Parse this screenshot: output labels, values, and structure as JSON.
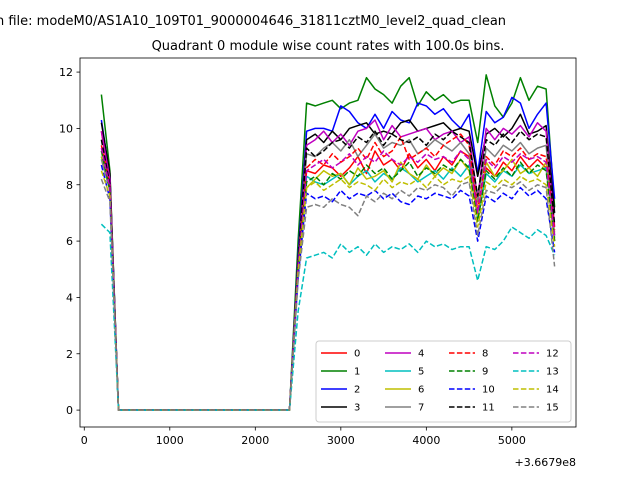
{
  "figure": {
    "suptitle": "n file: modeM0/AS1A10_109T01_9000004646_31811cztM0_level2_quad_clean",
    "title": "Quadrant 0 module wise count rates with 100.0s bins.",
    "x_offset_label": "+3.6679e8"
  },
  "chart_data": {
    "type": "line",
    "title": "Quadrant 0 module wise count rates with 100.0s bins.",
    "xlabel": "",
    "ylabel": "",
    "xlim": [
      -50,
      5750
    ],
    "ylim": [
      -0.6,
      12.5
    ],
    "x_offset": 366790000,
    "xticks": [
      0,
      1000,
      2000,
      3000,
      4000,
      5000
    ],
    "yticks": [
      0,
      2,
      4,
      6,
      8,
      10,
      12
    ],
    "grid": false,
    "legend": {
      "position": "lower-right",
      "columns": 4
    },
    "x": [
      200,
      300,
      400,
      500,
      600,
      700,
      800,
      900,
      1000,
      1100,
      1200,
      1300,
      1400,
      1500,
      1600,
      1700,
      1800,
      1900,
      2000,
      2100,
      2200,
      2300,
      2400,
      2500,
      2600,
      2700,
      2800,
      2900,
      3000,
      3100,
      3200,
      3300,
      3400,
      3500,
      3600,
      3700,
      3800,
      3900,
      4000,
      4100,
      4200,
      4300,
      4400,
      4500,
      4600,
      4700,
      4800,
      4900,
      5000,
      5100,
      5200,
      5300,
      5400,
      5500
    ],
    "series": [
      {
        "name": "0",
        "color": "#ff0000",
        "dash": "solid",
        "values": [
          9.9,
          8.0,
          0,
          0,
          0,
          0,
          0,
          0,
          0,
          0,
          0,
          0,
          0,
          0,
          0,
          0,
          0,
          0,
          0,
          0,
          0,
          0,
          0,
          5.0,
          8.5,
          8.4,
          8.7,
          8.6,
          8.3,
          8.6,
          9.0,
          8.4,
          9.2,
          8.7,
          8.9,
          8.5,
          9.1,
          8.6,
          8.9,
          8.5,
          9.0,
          8.7,
          9.2,
          9.0,
          7.0,
          8.6,
          8.3,
          8.8,
          8.5,
          9.0,
          8.6,
          8.9,
          8.6,
          6.0
        ]
      },
      {
        "name": "1",
        "color": "#008000",
        "dash": "solid",
        "values": [
          11.2,
          8.5,
          0,
          0,
          0,
          0,
          0,
          0,
          0,
          0,
          0,
          0,
          0,
          0,
          0,
          0,
          0,
          0,
          0,
          0,
          0,
          0,
          0,
          6.0,
          10.9,
          10.8,
          10.9,
          11.0,
          10.7,
          10.9,
          11.0,
          11.8,
          11.4,
          11.2,
          10.9,
          11.5,
          11.8,
          10.8,
          11.3,
          11.0,
          11.2,
          10.9,
          11.0,
          11.0,
          9.5,
          11.9,
          10.8,
          10.4,
          10.9,
          11.8,
          11.0,
          11.5,
          11.4,
          7.2
        ]
      },
      {
        "name": "2",
        "color": "#0000ff",
        "dash": "solid",
        "values": [
          10.3,
          8.3,
          0,
          0,
          0,
          0,
          0,
          0,
          0,
          0,
          0,
          0,
          0,
          0,
          0,
          0,
          0,
          0,
          0,
          0,
          0,
          0,
          0,
          5.5,
          9.9,
          10.0,
          10.0,
          9.9,
          10.8,
          10.6,
          10.2,
          10.0,
          10.5,
          10.0,
          10.6,
          10.3,
          10.2,
          10.9,
          10.8,
          10.5,
          10.7,
          10.3,
          10.0,
          10.5,
          8.4,
          10.6,
          10.2,
          10.4,
          11.1,
          10.9,
          10.0,
          10.5,
          10.9,
          7.5
        ]
      },
      {
        "name": "3",
        "color": "#000000",
        "dash": "solid",
        "values": [
          10.2,
          8.4,
          0,
          0,
          0,
          0,
          0,
          0,
          0,
          0,
          0,
          0,
          0,
          0,
          0,
          0,
          0,
          0,
          0,
          0,
          0,
          0,
          0,
          5.3,
          9.6,
          9.8,
          9.5,
          9.9,
          9.6,
          10.0,
          10.1,
          10.2,
          9.8,
          9.9,
          9.8,
          10.2,
          10.3,
          9.9,
          10.0,
          10.1,
          10.2,
          9.9,
          10.0,
          9.9,
          8.3,
          9.8,
          10.0,
          9.7,
          10.0,
          10.5,
          9.8,
          9.9,
          10.1,
          7.0
        ]
      },
      {
        "name": "4",
        "color": "#bf00bf",
        "dash": "solid",
        "values": [
          9.9,
          8.2,
          0,
          0,
          0,
          0,
          0,
          0,
          0,
          0,
          0,
          0,
          0,
          0,
          0,
          0,
          0,
          0,
          0,
          0,
          0,
          0,
          0,
          5.2,
          9.4,
          9.6,
          9.9,
          9.5,
          9.8,
          9.4,
          9.9,
          10.0,
          10.3,
          9.6,
          10.1,
          9.7,
          9.8,
          9.9,
          10.0,
          9.6,
          9.8,
          9.9,
          9.5,
          9.7,
          7.5,
          10.0,
          9.6,
          10.0,
          9.8,
          10.1,
          9.7,
          10.2,
          9.9,
          6.5
        ]
      },
      {
        "name": "5",
        "color": "#00bfbf",
        "dash": "solid",
        "values": [
          9.0,
          7.8,
          0,
          0,
          0,
          0,
          0,
          0,
          0,
          0,
          0,
          0,
          0,
          0,
          0,
          0,
          0,
          0,
          0,
          0,
          0,
          0,
          0,
          5.0,
          8.3,
          8.1,
          8.0,
          8.2,
          8.4,
          8.0,
          8.3,
          8.5,
          8.1,
          8.4,
          8.2,
          8.6,
          8.4,
          8.1,
          8.3,
          8.5,
          8.2,
          8.6,
          8.3,
          8.7,
          6.8,
          8.4,
          8.1,
          8.5,
          8.3,
          8.7,
          8.4,
          8.5,
          8.6,
          6.2
        ]
      },
      {
        "name": "6",
        "color": "#bfbf00",
        "dash": "solid",
        "values": [
          9.0,
          7.9,
          0,
          0,
          0,
          0,
          0,
          0,
          0,
          0,
          0,
          0,
          0,
          0,
          0,
          0,
          0,
          0,
          0,
          0,
          0,
          0,
          0,
          5.0,
          7.9,
          8.2,
          8.5,
          8.3,
          8.4,
          8.0,
          8.6,
          8.2,
          8.3,
          8.5,
          8.1,
          8.8,
          8.4,
          8.2,
          8.7,
          8.3,
          8.6,
          8.4,
          8.9,
          8.5,
          6.9,
          8.8,
          8.3,
          8.5,
          8.9,
          8.4,
          8.6,
          8.3,
          8.8,
          6.3
        ]
      },
      {
        "name": "7",
        "color": "#808080",
        "dash": "solid",
        "values": [
          8.9,
          7.8,
          0,
          0,
          0,
          0,
          0,
          0,
          0,
          0,
          0,
          0,
          0,
          0,
          0,
          0,
          0,
          0,
          0,
          0,
          0,
          0,
          0,
          5.1,
          9.1,
          9.0,
          9.3,
          9.5,
          9.2,
          9.6,
          9.0,
          9.4,
          9.8,
          9.3,
          9.5,
          9.4,
          9.6,
          9.1,
          9.3,
          9.6,
          9.4,
          9.2,
          9.5,
          9.1,
          7.4,
          9.3,
          9.0,
          9.4,
          9.2,
          9.5,
          9.1,
          9.3,
          9.4,
          6.1
        ]
      },
      {
        "name": "8",
        "color": "#ff0000",
        "dash": "dashed",
        "values": [
          9.4,
          7.9,
          0,
          0,
          0,
          0,
          0,
          0,
          0,
          0,
          0,
          0,
          0,
          0,
          0,
          0,
          0,
          0,
          0,
          0,
          0,
          0,
          0,
          5.2,
          8.6,
          8.9,
          8.7,
          9.1,
          8.8,
          9.0,
          9.3,
          8.9,
          9.5,
          9.0,
          9.2,
          9.7,
          8.9,
          9.1,
          9.3,
          9.0,
          9.4,
          9.6,
          9.8,
          9.4,
          7.1,
          9.0,
          8.7,
          9.2,
          9.0,
          9.3,
          8.9,
          9.1,
          9.0,
          6.4
        ]
      },
      {
        "name": "9",
        "color": "#008000",
        "dash": "dashed",
        "values": [
          9.2,
          7.8,
          0,
          0,
          0,
          0,
          0,
          0,
          0,
          0,
          0,
          0,
          0,
          0,
          0,
          0,
          0,
          0,
          0,
          0,
          0,
          0,
          0,
          5.1,
          8.1,
          8.3,
          8.0,
          8.4,
          8.2,
          8.5,
          8.3,
          8.7,
          8.4,
          8.6,
          8.2,
          8.5,
          8.8,
          8.3,
          8.6,
          8.4,
          8.7,
          8.5,
          8.9,
          8.6,
          6.7,
          8.5,
          8.2,
          8.6,
          8.3,
          8.8,
          8.4,
          8.7,
          8.5,
          6.0
        ]
      },
      {
        "name": "10",
        "color": "#0000ff",
        "dash": "dashed",
        "values": [
          8.7,
          7.5,
          0,
          0,
          0,
          0,
          0,
          0,
          0,
          0,
          0,
          0,
          0,
          0,
          0,
          0,
          0,
          0,
          0,
          0,
          0,
          0,
          0,
          4.7,
          7.7,
          7.5,
          7.6,
          7.4,
          7.8,
          7.5,
          7.7,
          7.6,
          7.8,
          7.5,
          7.7,
          7.4,
          7.3,
          7.6,
          7.5,
          7.7,
          7.6,
          7.5,
          7.8,
          7.6,
          6.0,
          7.6,
          7.4,
          7.7,
          7.5,
          7.9,
          7.6,
          7.8,
          7.5,
          5.6
        ]
      },
      {
        "name": "11",
        "color": "#000000",
        "dash": "dashed",
        "values": [
          9.6,
          8.0,
          0,
          0,
          0,
          0,
          0,
          0,
          0,
          0,
          0,
          0,
          0,
          0,
          0,
          0,
          0,
          0,
          0,
          0,
          0,
          0,
          0,
          5.2,
          9.3,
          9.0,
          9.2,
          9.5,
          9.6,
          9.3,
          9.7,
          9.5,
          9.9,
          9.4,
          9.8,
          9.6,
          9.5,
          9.7,
          9.4,
          9.8,
          9.6,
          9.9,
          9.7,
          9.5,
          7.6,
          9.6,
          9.4,
          9.8,
          9.5,
          9.9,
          9.6,
          9.8,
          9.7,
          6.6
        ]
      },
      {
        "name": "12",
        "color": "#bf00bf",
        "dash": "dashed",
        "values": [
          9.3,
          7.9,
          0,
          0,
          0,
          0,
          0,
          0,
          0,
          0,
          0,
          0,
          0,
          0,
          0,
          0,
          0,
          0,
          0,
          0,
          0,
          0,
          0,
          5.1,
          8.5,
          8.7,
          8.9,
          8.6,
          8.8,
          9.1,
          8.7,
          9.0,
          8.8,
          9.2,
          8.9,
          8.7,
          9.0,
          8.8,
          9.1,
          8.9,
          9.0,
          8.8,
          9.2,
          8.9,
          7.0,
          8.9,
          8.6,
          9.0,
          8.8,
          9.1,
          8.9,
          9.0,
          8.8,
          6.2
        ]
      },
      {
        "name": "13",
        "color": "#00bfbf",
        "dash": "dashed",
        "values": [
          6.6,
          6.3,
          0,
          0,
          0,
          0,
          0,
          0,
          0,
          0,
          0,
          0,
          0,
          0,
          0,
          0,
          0,
          0,
          0,
          0,
          0,
          0,
          0,
          3.5,
          5.4,
          5.5,
          5.6,
          5.4,
          5.9,
          5.6,
          5.8,
          5.5,
          5.9,
          5.6,
          5.8,
          5.7,
          5.9,
          5.6,
          6.0,
          5.8,
          5.9,
          5.7,
          5.8,
          5.8,
          4.6,
          5.8,
          5.7,
          6.0,
          6.5,
          6.3,
          6.1,
          6.4,
          6.2,
          5.5
        ]
      },
      {
        "name": "14",
        "color": "#bfbf00",
        "dash": "dashed",
        "values": [
          8.5,
          7.6,
          0,
          0,
          0,
          0,
          0,
          0,
          0,
          0,
          0,
          0,
          0,
          0,
          0,
          0,
          0,
          0,
          0,
          0,
          0,
          0,
          0,
          4.9,
          7.9,
          8.1,
          7.8,
          8.0,
          8.2,
          7.9,
          8.1,
          8.0,
          7.8,
          8.2,
          7.9,
          8.1,
          8.0,
          8.2,
          7.9,
          8.3,
          8.0,
          8.2,
          8.1,
          8.3,
          6.5,
          8.1,
          7.9,
          8.2,
          8.0,
          8.3,
          8.1,
          8.2,
          8.0,
          5.8
        ]
      },
      {
        "name": "15",
        "color": "#808080",
        "dash": "dashed",
        "values": [
          8.2,
          7.4,
          0,
          0,
          0,
          0,
          0,
          0,
          0,
          0,
          0,
          0,
          0,
          0,
          0,
          0,
          0,
          0,
          0,
          0,
          0,
          0,
          0,
          4.6,
          7.2,
          7.3,
          7.2,
          7.5,
          7.3,
          7.2,
          6.9,
          7.6,
          7.4,
          7.7,
          7.5,
          7.8,
          7.6,
          7.9,
          7.8,
          8.0,
          7.9,
          7.6,
          8.0,
          8.1,
          6.2,
          7.8,
          7.7,
          8.0,
          7.9,
          8.1,
          7.8,
          8.0,
          7.9,
          5.1
        ]
      }
    ]
  }
}
